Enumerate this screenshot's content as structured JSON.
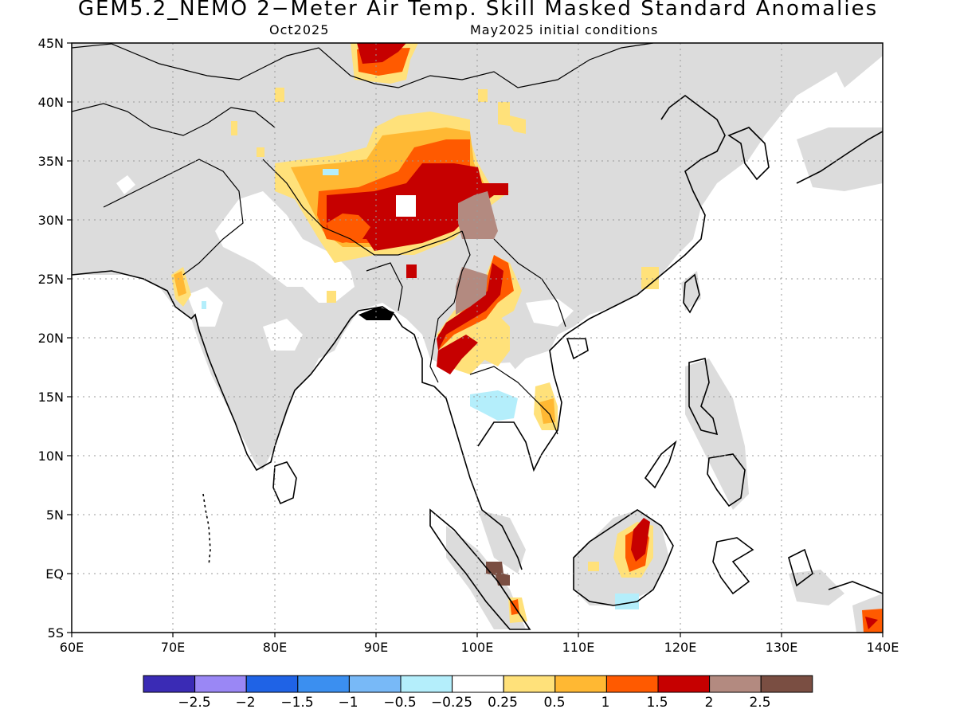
{
  "header": {
    "title": "GEM5.2_NEMO 2−Meter Air Temp. Skill Masked Standard Anomalies",
    "target_month": "Oct2025",
    "initial_conditions": "May2025 initial conditions"
  },
  "map": {
    "lon_range": [
      60,
      140
    ],
    "lat_range": [
      -5,
      45
    ],
    "grid": "dotted",
    "lat_labels": [
      "45N",
      "40N",
      "35N",
      "30N",
      "25N",
      "20N",
      "15N",
      "10N",
      "5N",
      "EQ",
      "5S"
    ],
    "lon_labels": [
      "60E",
      "70E",
      "80E",
      "90E",
      "100E",
      "110E",
      "120E",
      "130E",
      "140E"
    ],
    "masked_color": "#dcdcdc",
    "anomaly_regions": [
      {
        "name": "Tibetan Plateau",
        "lon": [
          86,
          102
        ],
        "lat": [
          27,
          37
        ],
        "max_category": "1.5 to 2"
      },
      {
        "name": "Mongolia/N China",
        "lon": [
          89,
          95
        ],
        "lat": [
          42,
          45
        ],
        "max_category": "1.5 to 2"
      },
      {
        "name": "Myanmar",
        "lon": [
          96,
          103
        ],
        "lat": [
          18,
          27
        ],
        "max_category": "1.5 to 2"
      },
      {
        "name": "Borneo",
        "lon": [
          113,
          117
        ],
        "lat": [
          0,
          5
        ],
        "max_category": "1.5 to 2"
      },
      {
        "name": "Gulf of Kutch",
        "lon": [
          70,
          72
        ],
        "lat": [
          22,
          26
        ],
        "max_category": "0.5 to 1"
      },
      {
        "name": "Cambodia/Vietnam",
        "lon": [
          105,
          108
        ],
        "lat": [
          12,
          16
        ],
        "max_category": "0.5 to 1"
      },
      {
        "name": "New Guinea",
        "lon": [
          138,
          140
        ],
        "lat": [
          -5,
          -3
        ],
        "max_category": "1.5 to 2"
      },
      {
        "name": "Thailand",
        "lon": [
          98,
          104
        ],
        "lat": [
          13,
          16
        ],
        "max_category": "-0.5 to -0.25"
      }
    ]
  },
  "colorbar": {
    "labels": [
      "−2.5",
      "−2",
      "−1.5",
      "−1",
      "−0.5",
      "−0.25",
      "0.25",
      "0.5",
      "1",
      "1.5",
      "2",
      "2.5"
    ],
    "colors": [
      "#3a2bb5",
      "#9a87f5",
      "#1f63e6",
      "#3b8ff0",
      "#78b9f7",
      "#b4eefb",
      "#ffffff",
      "#ffe17a",
      "#ffb833",
      "#ff5a00",
      "#c60000",
      "#b38a80",
      "#7a4e42"
    ]
  }
}
